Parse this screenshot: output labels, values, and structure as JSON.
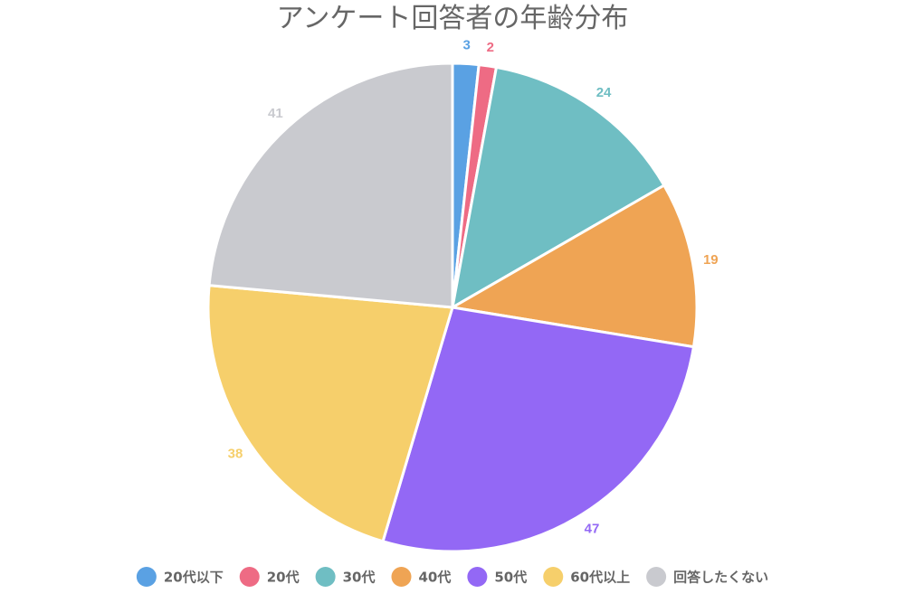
{
  "chart_data": {
    "type": "pie",
    "title": "アンケート回答者の年齢分布",
    "categories": [
      "20代以下",
      "20代",
      "30代",
      "40代",
      "50代",
      "60代以上",
      "回答したくない"
    ],
    "values": [
      3,
      2,
      24,
      19,
      47,
      38,
      41
    ],
    "colors": [
      "#5aa1e3",
      "#ee6b84",
      "#6fbec3",
      "#efa454",
      "#9368f5",
      "#f6cf6b",
      "#c9cacf"
    ],
    "start_angle": "12 o'clock",
    "direction": "clockwise",
    "legend_position": "bottom"
  }
}
